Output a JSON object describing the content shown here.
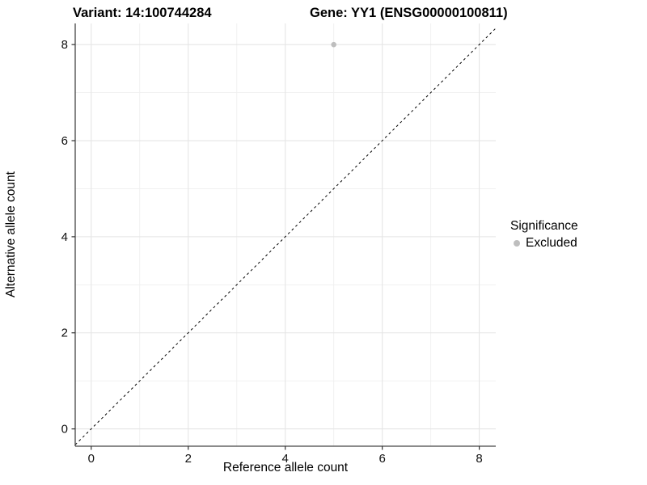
{
  "title": {
    "variant": "Variant: 14:100744284",
    "gene": "Gene: YY1 (ENSG00000100811)"
  },
  "legend": {
    "title": "Significance",
    "items": [
      {
        "label": "Excluded",
        "color": "#bebebe"
      }
    ]
  },
  "chart_data": {
    "type": "scatter",
    "title": "Variant: 14:100744284   Gene: YY1 (ENSG00000100811)",
    "xlabel": "Reference allele count",
    "ylabel": "Alternative allele count",
    "xlim": [
      -0.33,
      8.34
    ],
    "ylim": [
      -0.36,
      8.44
    ],
    "x_ticks": [
      0,
      2,
      4,
      6,
      8
    ],
    "y_ticks": [
      0,
      2,
      4,
      6,
      8
    ],
    "x_minor_gridlines": [
      1,
      3,
      5,
      7
    ],
    "y_minor_gridlines": [
      1,
      3,
      5,
      7
    ],
    "grid": true,
    "legend_position": "right",
    "series": [
      {
        "name": "Excluded",
        "color": "#bebebe",
        "points": [
          {
            "x": 5,
            "y": 8
          }
        ]
      }
    ],
    "reference_line": {
      "description": "identity line y = x",
      "slope": 1,
      "intercept": 0,
      "style": "dashed",
      "color": "#000000"
    }
  },
  "style": {
    "background_color": "#ffffff",
    "major_grid_color": "#e5e5e5",
    "minor_grid_color": "#efefef",
    "axis_line_color": "#464646",
    "tick_mark_color": "#333333",
    "tick_label_color": "#111111",
    "point_color": "#bebebe",
    "reference_line_color": "#000000"
  }
}
